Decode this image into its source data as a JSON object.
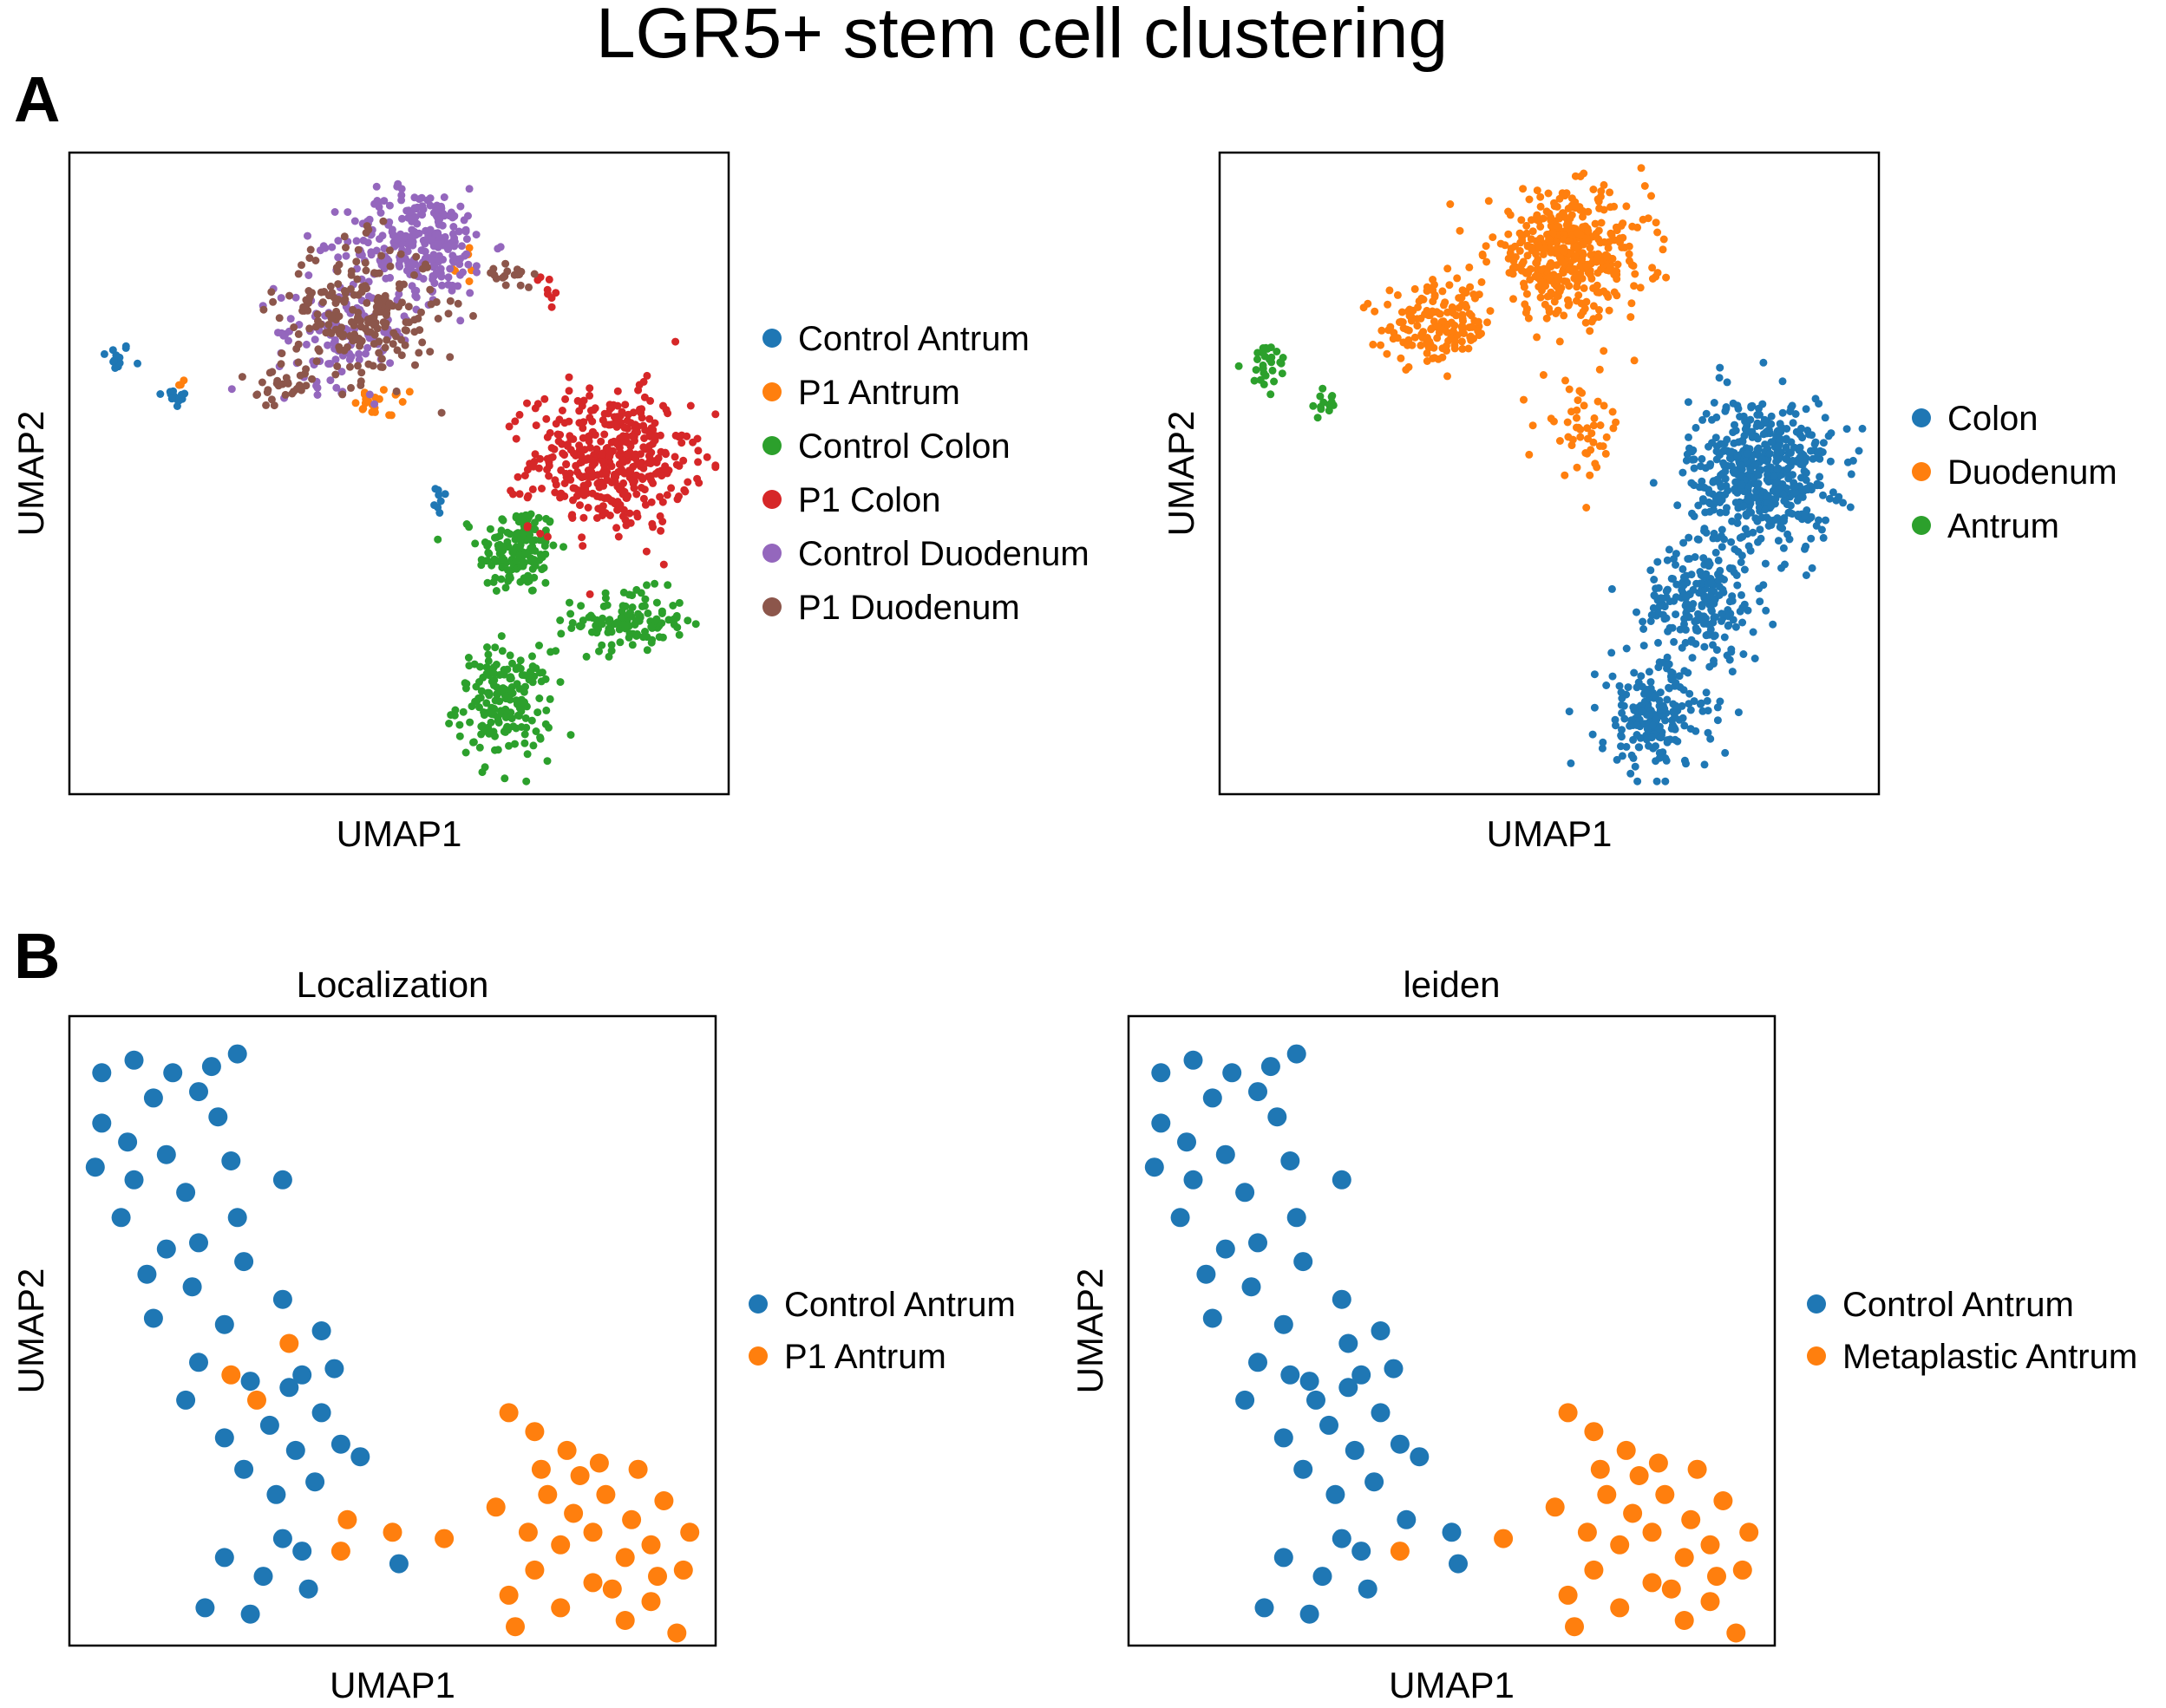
{
  "figure": {
    "title": "LGR5+ stem cell clustering",
    "panel_labels": [
      "A",
      "B"
    ]
  },
  "chart_data": [
    {
      "type": "scatter",
      "panel": "A",
      "title": "",
      "xlabel": "UMAP1",
      "ylabel": "UMAP2",
      "ticks": "none",
      "grid": false,
      "legend_position": "right",
      "point_size": "small",
      "series": [
        {
          "name": "Control Antrum",
          "color": "#1f77b4",
          "clusters": [
            [
              0.07,
              0.68,
              0.02,
              0.02,
              14
            ],
            [
              0.16,
              0.62,
              0.02,
              0.015,
              12
            ],
            [
              0.56,
              0.45,
              0.015,
              0.03,
              8
            ]
          ]
        },
        {
          "name": "P1 Antrum",
          "color": "#ff7f0e",
          "clusters": [
            [
              0.48,
              0.61,
              0.04,
              0.02,
              22
            ],
            [
              0.17,
              0.64,
              0.01,
              0.01,
              3
            ],
            [
              0.6,
              0.84,
              0.04,
              0.04,
              6
            ]
          ]
        },
        {
          "name": "Control Colon",
          "color": "#2ca02c",
          "clusters": [
            [
              0.68,
              0.38,
              0.05,
              0.06,
              150
            ],
            [
              0.85,
              0.27,
              0.07,
              0.04,
              120
            ],
            [
              0.66,
              0.14,
              0.06,
              0.07,
              180
            ]
          ]
        },
        {
          "name": "P1 Colon",
          "color": "#d62728",
          "clusters": [
            [
              0.82,
              0.52,
              0.1,
              0.09,
              420
            ],
            [
              0.73,
              0.79,
              0.02,
              0.03,
              8
            ]
          ]
        },
        {
          "name": "Control Duodenum",
          "color": "#9467bd",
          "clusters": [
            [
              0.53,
              0.86,
              0.09,
              0.07,
              260
            ],
            [
              0.42,
              0.72,
              0.09,
              0.07,
              120
            ]
          ]
        },
        {
          "name": "P1 Duodenum",
          "color": "#8c564b",
          "clusters": [
            [
              0.44,
              0.75,
              0.1,
              0.09,
              220
            ],
            [
              0.33,
              0.63,
              0.05,
              0.03,
              30
            ],
            [
              0.67,
              0.81,
              0.03,
              0.02,
              18
            ]
          ]
        }
      ]
    },
    {
      "type": "scatter",
      "panel": "A",
      "title": "",
      "xlabel": "UMAP1",
      "ylabel": "UMAP2",
      "ticks": "none",
      "grid": false,
      "legend_position": "right",
      "point_size": "small",
      "series": [
        {
          "name": "Colon",
          "color": "#1f77b4",
          "clusters": [
            [
              0.82,
              0.5,
              0.09,
              0.1,
              520
            ],
            [
              0.73,
              0.3,
              0.07,
              0.07,
              200
            ],
            [
              0.66,
              0.12,
              0.07,
              0.07,
              200
            ]
          ]
        },
        {
          "name": "Duodenum",
          "color": "#ff7f0e",
          "clusters": [
            [
              0.53,
              0.84,
              0.1,
              0.08,
              420
            ],
            [
              0.33,
              0.73,
              0.07,
              0.05,
              160
            ],
            [
              0.55,
              0.57,
              0.05,
              0.06,
              50
            ]
          ]
        },
        {
          "name": "Antrum",
          "color": "#2ca02c",
          "clusters": [
            [
              0.07,
              0.67,
              0.03,
              0.03,
              28
            ],
            [
              0.16,
              0.61,
              0.02,
              0.02,
              14
            ]
          ]
        }
      ]
    },
    {
      "type": "scatter",
      "panel": "B",
      "title": "Localization",
      "xlabel": "UMAP1",
      "ylabel": "UMAP2",
      "ticks": "none",
      "grid": false,
      "legend_position": "right",
      "point_size": "large",
      "series": [
        {
          "name": "Control Antrum",
          "color": "#1f77b4",
          "points": [
            [
              0.05,
              0.91
            ],
            [
              0.1,
              0.93
            ],
            [
              0.16,
              0.91
            ],
            [
              0.22,
              0.92
            ],
            [
              0.26,
              0.94
            ],
            [
              0.2,
              0.88
            ],
            [
              0.13,
              0.87
            ],
            [
              0.05,
              0.83
            ],
            [
              0.09,
              0.8
            ],
            [
              0.15,
              0.78
            ],
            [
              0.23,
              0.84
            ],
            [
              0.04,
              0.76
            ],
            [
              0.1,
              0.74
            ],
            [
              0.18,
              0.72
            ],
            [
              0.25,
              0.77
            ],
            [
              0.33,
              0.74
            ],
            [
              0.08,
              0.68
            ],
            [
              0.15,
              0.63
            ],
            [
              0.2,
              0.64
            ],
            [
              0.26,
              0.68
            ],
            [
              0.12,
              0.59
            ],
            [
              0.19,
              0.57
            ],
            [
              0.27,
              0.61
            ],
            [
              0.13,
              0.52
            ],
            [
              0.24,
              0.51
            ],
            [
              0.33,
              0.55
            ],
            [
              0.39,
              0.5
            ],
            [
              0.41,
              0.44
            ],
            [
              0.34,
              0.41
            ],
            [
              0.39,
              0.37
            ],
            [
              0.31,
              0.35
            ],
            [
              0.35,
              0.31
            ],
            [
              0.42,
              0.32
            ],
            [
              0.27,
              0.28
            ],
            [
              0.32,
              0.24
            ],
            [
              0.33,
              0.17
            ],
            [
              0.24,
              0.14
            ],
            [
              0.3,
              0.11
            ],
            [
              0.37,
              0.09
            ],
            [
              0.28,
              0.05
            ],
            [
              0.21,
              0.06
            ],
            [
              0.36,
              0.15
            ],
            [
              0.51,
              0.13
            ],
            [
              0.45,
              0.3
            ],
            [
              0.38,
              0.26
            ],
            [
              0.2,
              0.45
            ],
            [
              0.28,
              0.42
            ],
            [
              0.36,
              0.43
            ],
            [
              0.18,
              0.39
            ],
            [
              0.24,
              0.33
            ]
          ]
        },
        {
          "name": "P1 Antrum",
          "color": "#ff7f0e",
          "points": [
            [
              0.25,
              0.43
            ],
            [
              0.29,
              0.39
            ],
            [
              0.34,
              0.48
            ],
            [
              0.43,
              0.2
            ],
            [
              0.5,
              0.18
            ],
            [
              0.58,
              0.17
            ],
            [
              0.42,
              0.15
            ],
            [
              0.68,
              0.37
            ],
            [
              0.72,
              0.34
            ],
            [
              0.77,
              0.31
            ],
            [
              0.73,
              0.28
            ],
            [
              0.79,
              0.27
            ],
            [
              0.83,
              0.24
            ],
            [
              0.87,
              0.2
            ],
            [
              0.9,
              0.16
            ],
            [
              0.95,
              0.12
            ],
            [
              0.68,
              0.08
            ],
            [
              0.72,
              0.12
            ],
            [
              0.76,
              0.06
            ],
            [
              0.81,
              0.1
            ],
            [
              0.86,
              0.04
            ],
            [
              0.9,
              0.07
            ],
            [
              0.94,
              0.02
            ],
            [
              0.66,
              0.22
            ],
            [
              0.71,
              0.18
            ],
            [
              0.76,
              0.16
            ],
            [
              0.81,
              0.18
            ],
            [
              0.86,
              0.14
            ],
            [
              0.91,
              0.11
            ],
            [
              0.74,
              0.24
            ],
            [
              0.82,
              0.29
            ],
            [
              0.88,
              0.28
            ],
            [
              0.92,
              0.23
            ],
            [
              0.96,
              0.18
            ],
            [
              0.69,
              0.03
            ],
            [
              0.78,
              0.21
            ],
            [
              0.84,
              0.09
            ]
          ]
        }
      ]
    },
    {
      "type": "scatter",
      "panel": "B",
      "title": "leiden",
      "xlabel": "UMAP1",
      "ylabel": "UMAP2",
      "ticks": "none",
      "grid": false,
      "legend_position": "right",
      "point_size": "large",
      "series": [
        {
          "name": "Control Antrum",
          "color": "#1f77b4",
          "points": [
            [
              0.05,
              0.91
            ],
            [
              0.1,
              0.93
            ],
            [
              0.16,
              0.91
            ],
            [
              0.22,
              0.92
            ],
            [
              0.26,
              0.94
            ],
            [
              0.2,
              0.88
            ],
            [
              0.13,
              0.87
            ],
            [
              0.05,
              0.83
            ],
            [
              0.09,
              0.8
            ],
            [
              0.15,
              0.78
            ],
            [
              0.23,
              0.84
            ],
            [
              0.04,
              0.76
            ],
            [
              0.1,
              0.74
            ],
            [
              0.18,
              0.72
            ],
            [
              0.25,
              0.77
            ],
            [
              0.33,
              0.74
            ],
            [
              0.08,
              0.68
            ],
            [
              0.15,
              0.63
            ],
            [
              0.2,
              0.64
            ],
            [
              0.26,
              0.68
            ],
            [
              0.12,
              0.59
            ],
            [
              0.19,
              0.57
            ],
            [
              0.27,
              0.61
            ],
            [
              0.13,
              0.52
            ],
            [
              0.24,
              0.51
            ],
            [
              0.33,
              0.55
            ],
            [
              0.39,
              0.5
            ],
            [
              0.41,
              0.44
            ],
            [
              0.34,
              0.41
            ],
            [
              0.39,
              0.37
            ],
            [
              0.31,
              0.35
            ],
            [
              0.35,
              0.31
            ],
            [
              0.42,
              0.32
            ],
            [
              0.27,
              0.28
            ],
            [
              0.32,
              0.24
            ],
            [
              0.33,
              0.17
            ],
            [
              0.24,
              0.14
            ],
            [
              0.3,
              0.11
            ],
            [
              0.37,
              0.09
            ],
            [
              0.28,
              0.05
            ],
            [
              0.21,
              0.06
            ],
            [
              0.36,
              0.15
            ],
            [
              0.51,
              0.13
            ],
            [
              0.45,
              0.3
            ],
            [
              0.38,
              0.26
            ],
            [
              0.2,
              0.45
            ],
            [
              0.28,
              0.42
            ],
            [
              0.36,
              0.43
            ],
            [
              0.18,
              0.39
            ],
            [
              0.24,
              0.33
            ],
            [
              0.25,
              0.43
            ],
            [
              0.29,
              0.39
            ],
            [
              0.34,
              0.48
            ],
            [
              0.43,
              0.2
            ],
            [
              0.5,
              0.18
            ]
          ]
        },
        {
          "name": "Metaplastic Antrum",
          "color": "#ff7f0e",
          "points": [
            [
              0.58,
              0.17
            ],
            [
              0.42,
              0.15
            ],
            [
              0.68,
              0.37
            ],
            [
              0.72,
              0.34
            ],
            [
              0.77,
              0.31
            ],
            [
              0.73,
              0.28
            ],
            [
              0.79,
              0.27
            ],
            [
              0.83,
              0.24
            ],
            [
              0.87,
              0.2
            ],
            [
              0.9,
              0.16
            ],
            [
              0.95,
              0.12
            ],
            [
              0.68,
              0.08
            ],
            [
              0.72,
              0.12
            ],
            [
              0.76,
              0.06
            ],
            [
              0.81,
              0.1
            ],
            [
              0.86,
              0.04
            ],
            [
              0.9,
              0.07
            ],
            [
              0.94,
              0.02
            ],
            [
              0.66,
              0.22
            ],
            [
              0.71,
              0.18
            ],
            [
              0.76,
              0.16
            ],
            [
              0.81,
              0.18
            ],
            [
              0.86,
              0.14
            ],
            [
              0.91,
              0.11
            ],
            [
              0.74,
              0.24
            ],
            [
              0.82,
              0.29
            ],
            [
              0.88,
              0.28
            ],
            [
              0.92,
              0.23
            ],
            [
              0.96,
              0.18
            ],
            [
              0.69,
              0.03
            ],
            [
              0.78,
              0.21
            ],
            [
              0.84,
              0.09
            ]
          ]
        }
      ]
    }
  ]
}
